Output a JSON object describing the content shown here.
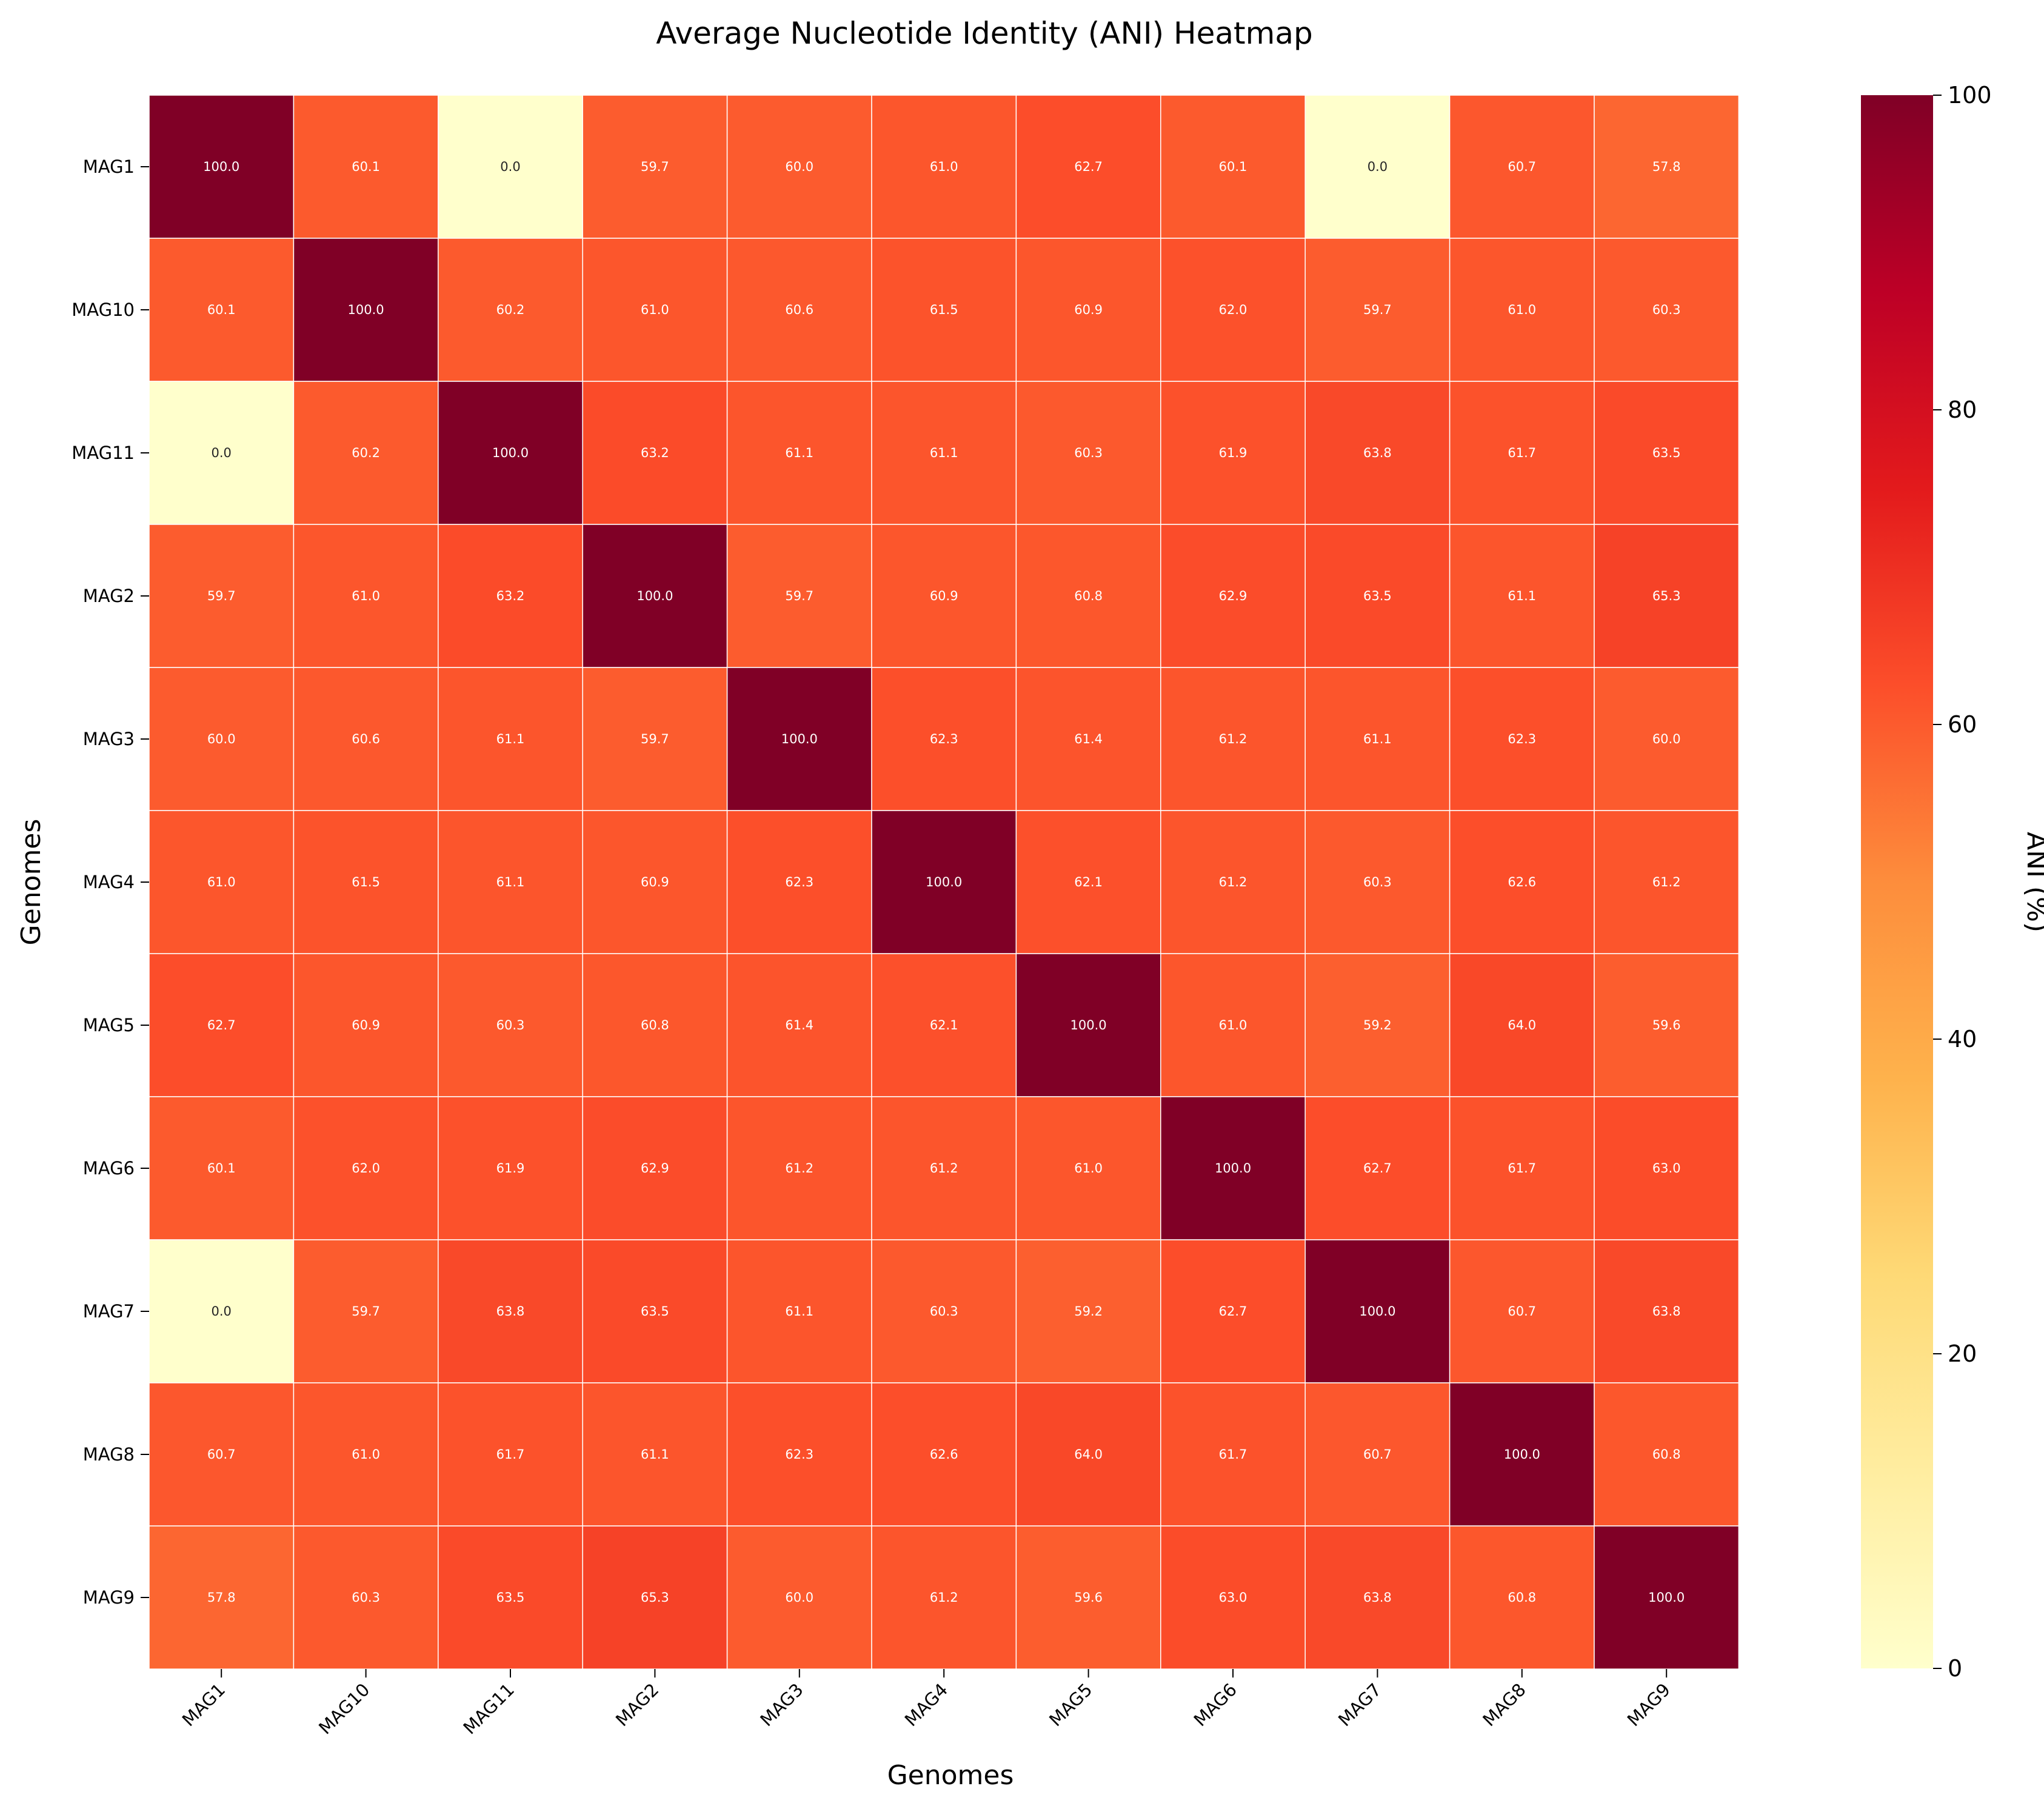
{
  "chart_data": {
    "type": "heatmap",
    "title": "Average Nucleotide Identity (ANI) Heatmap",
    "xlabel": "Genomes",
    "ylabel": "Genomes",
    "x_categories": [
      "MAG1",
      "MAG10",
      "MAG11",
      "MAG2",
      "MAG3",
      "MAG4",
      "MAG5",
      "MAG6",
      "MAG7",
      "MAG8",
      "MAG9"
    ],
    "y_categories": [
      "MAG1",
      "MAG10",
      "MAG11",
      "MAG2",
      "MAG3",
      "MAG4",
      "MAG5",
      "MAG6",
      "MAG7",
      "MAG8",
      "MAG9"
    ],
    "values": [
      [
        100.0,
        60.1,
        0.0,
        59.7,
        60.0,
        61.0,
        62.7,
        60.1,
        0.0,
        60.7,
        57.8
      ],
      [
        60.1,
        100.0,
        60.2,
        61.0,
        60.6,
        61.5,
        60.9,
        62.0,
        59.7,
        61.0,
        60.3
      ],
      [
        0.0,
        60.2,
        100.0,
        63.2,
        61.1,
        61.1,
        60.3,
        61.9,
        63.8,
        61.7,
        63.5
      ],
      [
        59.7,
        61.0,
        63.2,
        100.0,
        59.7,
        60.9,
        60.8,
        62.9,
        63.5,
        61.1,
        65.3
      ],
      [
        60.0,
        60.6,
        61.1,
        59.7,
        100.0,
        62.3,
        61.4,
        61.2,
        61.1,
        62.3,
        60.0
      ],
      [
        61.0,
        61.5,
        61.1,
        60.9,
        62.3,
        100.0,
        62.1,
        61.2,
        60.3,
        62.6,
        61.2
      ],
      [
        62.7,
        60.9,
        60.3,
        60.8,
        61.4,
        62.1,
        100.0,
        61.0,
        59.2,
        64.0,
        59.6
      ],
      [
        60.1,
        62.0,
        61.9,
        62.9,
        61.2,
        61.2,
        61.0,
        100.0,
        62.7,
        61.7,
        63.0
      ],
      [
        0.0,
        59.7,
        63.8,
        63.5,
        61.1,
        60.3,
        59.2,
        62.7,
        100.0,
        60.7,
        63.8
      ],
      [
        60.7,
        61.0,
        61.7,
        61.1,
        62.3,
        62.6,
        64.0,
        61.7,
        60.7,
        100.0,
        60.8
      ],
      [
        57.8,
        60.3,
        63.5,
        65.3,
        60.0,
        61.2,
        59.6,
        63.0,
        63.8,
        60.8,
        100.0
      ]
    ],
    "value_format": "0.0",
    "colorbar": {
      "label": "ANI (%)",
      "range": [
        0,
        100
      ],
      "ticks": [
        0,
        20,
        40,
        60,
        80,
        100
      ],
      "colormap": "YlOrRd"
    }
  }
}
